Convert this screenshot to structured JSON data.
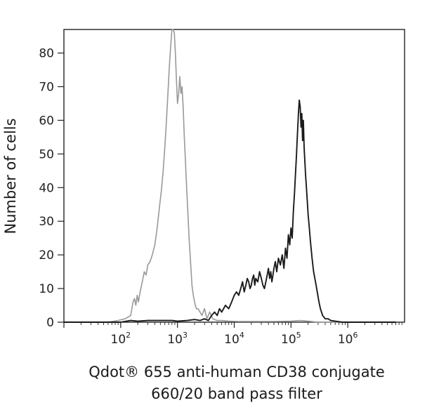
{
  "chart_data": {
    "type": "line",
    "subtype": "flow-cytometry-histogram",
    "title": "",
    "xlabel_line1": "Qdot® 655 anti-human CD38 conjugate",
    "xlabel_line2": "660/20 band pass filter",
    "ylabel": "Number of cells",
    "x_scale": "log10",
    "xlim": [
      10,
      10000000
    ],
    "ylim": [
      0,
      87
    ],
    "y_ticks": [
      0,
      10,
      20,
      30,
      40,
      50,
      60,
      70,
      80
    ],
    "y_tick_labels": [
      "0",
      "10",
      "20",
      "30",
      "40",
      "50",
      "60",
      "70",
      "80"
    ],
    "x_ticks": [
      {
        "value": 100,
        "base": "10",
        "exp": "2"
      },
      {
        "value": 1000,
        "base": "10",
        "exp": "3"
      },
      {
        "value": 10000,
        "base": "10",
        "exp": "4"
      },
      {
        "value": 100000,
        "base": "10",
        "exp": "5"
      },
      {
        "value": 1000000,
        "base": "10",
        "exp": "6"
      }
    ],
    "grid": false,
    "legend": "none",
    "series": [
      {
        "color": "#999999",
        "x": [
          60,
          90,
          120,
          150,
          165,
          175,
          185,
          195,
          205,
          220,
          240,
          260,
          280,
          300,
          330,
          360,
          400,
          440,
          480,
          520,
          560,
          600,
          640,
          680,
          720,
          760,
          800,
          840,
          880,
          920,
          960,
          1000,
          1050,
          1100,
          1150,
          1200,
          1260,
          1320,
          1380,
          1450,
          1520,
          1600,
          1700,
          1800,
          1900,
          2000,
          2150,
          2300,
          2500,
          2700,
          3000,
          3300,
          3700,
          4200,
          5000,
          6000,
          8000,
          12000,
          20000,
          50000,
          100000,
          150000,
          200000,
          300000,
          1000000,
          7000000
        ],
        "y": [
          0,
          0.5,
          1,
          2,
          6,
          7,
          5,
          8,
          6,
          9,
          12,
          15,
          14,
          17,
          18,
          20,
          23,
          28,
          34,
          39,
          45,
          52,
          60,
          68,
          76,
          82,
          87,
          87,
          86,
          80,
          72,
          65,
          68,
          73,
          68,
          70,
          64,
          55,
          48,
          40,
          33,
          25,
          18,
          11,
          8,
          6,
          4,
          4,
          3,
          2,
          4,
          1,
          3,
          1,
          0.5,
          0.5,
          0.3,
          0.2,
          0.2,
          0.2,
          0.3,
          0.5,
          0.3,
          0,
          0,
          0
        ]
      },
      {
        "color": "#1a1a1a",
        "x": [
          10,
          100,
          150,
          200,
          300,
          500,
          800,
          1000,
          1500,
          2000,
          2500,
          3000,
          3500,
          4000,
          4500,
          5000,
          5500,
          6000,
          7000,
          8000,
          9000,
          10000,
          11000,
          12000,
          13000,
          14000,
          15000,
          16000,
          17000,
          18000,
          19000,
          20000,
          21000,
          22000,
          23000,
          24000,
          26000,
          28000,
          30000,
          32000,
          34000,
          36000,
          38000,
          40000,
          42000,
          44000,
          46000,
          48000,
          50000,
          53000,
          56000,
          60000,
          65000,
          70000,
          75000,
          80000,
          85000,
          90000,
          95000,
          100000,
          105000,
          110000,
          115000,
          120000,
          125000,
          130000,
          135000,
          140000,
          145000,
          150000,
          155000,
          160000,
          165000,
          170000,
          175000,
          180000,
          190000,
          200000,
          210000,
          220000,
          235000,
          250000,
          270000,
          290000,
          310000,
          330000,
          360000,
          400000,
          450000,
          500000,
          600000,
          800000,
          2000000,
          7000000
        ],
        "y": [
          0,
          0,
          0.5,
          0.3,
          0.5,
          0.5,
          0.5,
          0.3,
          0.5,
          0.8,
          0.5,
          1,
          0.5,
          2,
          3,
          2,
          4,
          3,
          5,
          4,
          6,
          8,
          9,
          8,
          10,
          12,
          9,
          11,
          13,
          12,
          10,
          11,
          13,
          14,
          11,
          13,
          12,
          15,
          13,
          11,
          10,
          12,
          14,
          16,
          13,
          15,
          12,
          14,
          16,
          18,
          15,
          19,
          17,
          20,
          16,
          22,
          19,
          26,
          23,
          28,
          25,
          33,
          38,
          44,
          50,
          56,
          62,
          66,
          64,
          58,
          62,
          54,
          60,
          52,
          48,
          44,
          38,
          32,
          28,
          24,
          19,
          15,
          12,
          9,
          6,
          4,
          2,
          1,
          1,
          0.5,
          0.3,
          0,
          0,
          0
        ]
      }
    ]
  }
}
